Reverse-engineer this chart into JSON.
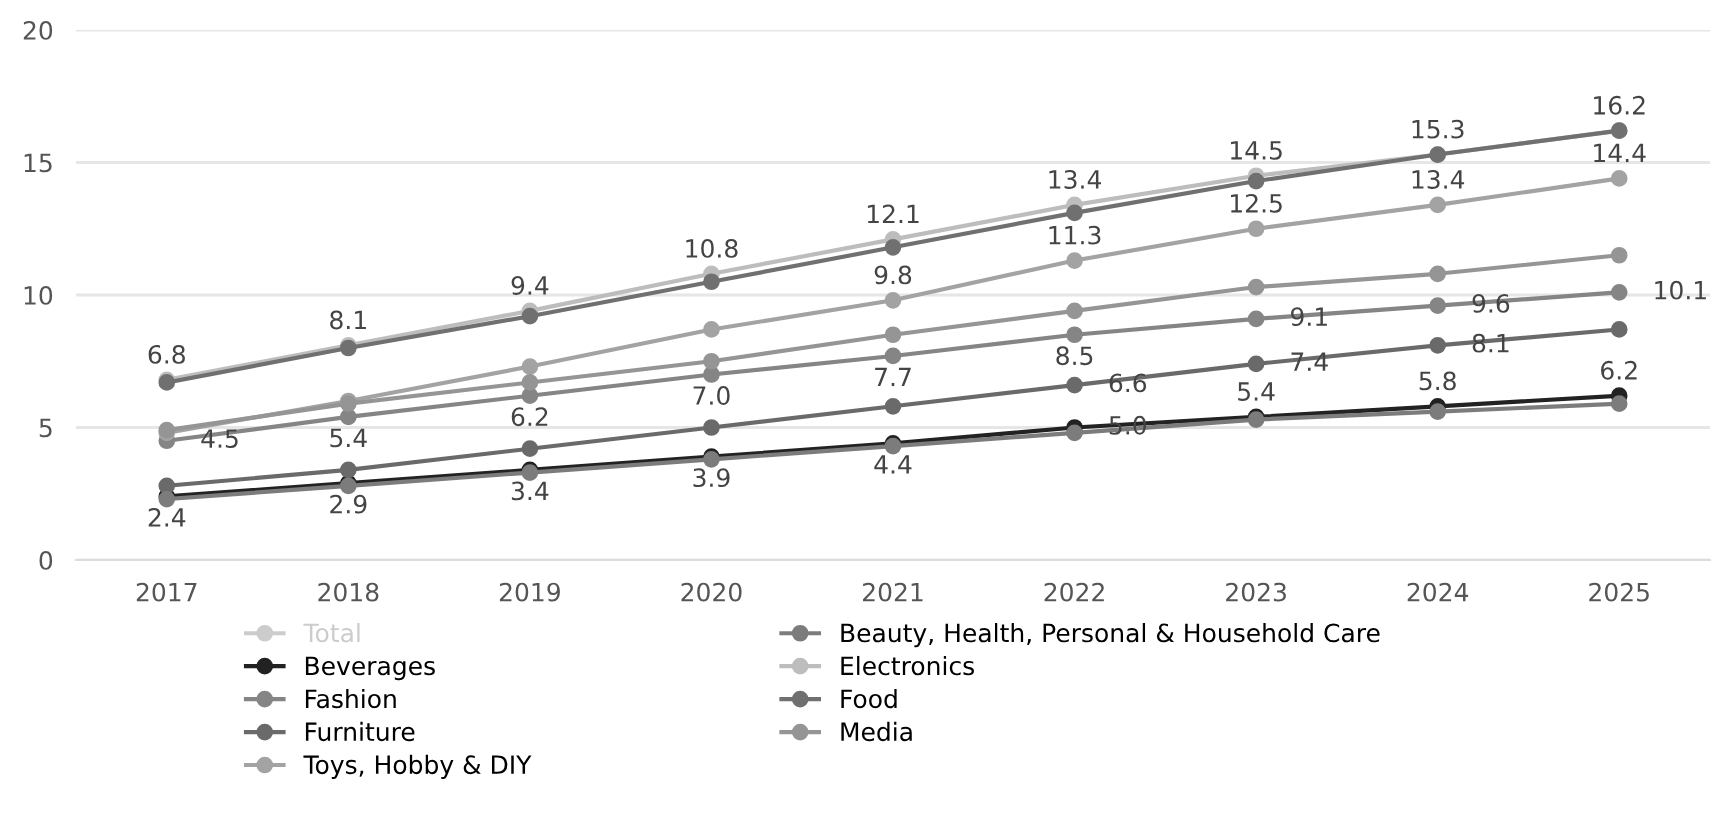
{
  "chart_data": {
    "type": "line",
    "categories": [
      "2017",
      "2018",
      "2019",
      "2020",
      "2021",
      "2022",
      "2023",
      "2024",
      "2025"
    ],
    "ylim": [
      0,
      20
    ],
    "yticks": [
      0,
      5,
      10,
      15,
      20
    ],
    "grid": "y",
    "marker": "circle",
    "line_style": "solid",
    "legend": "bottom left",
    "series": [
      {
        "name": "Total",
        "color": "#cccccc",
        "values": [
          null,
          null,
          null,
          null,
          null,
          null,
          null,
          null,
          null
        ]
      },
      {
        "name": "Beverages",
        "color": "#222222",
        "values": [
          2.4,
          2.9,
          3.4,
          3.9,
          4.4,
          5.0,
          5.4,
          5.8,
          6.2
        ],
        "value_labels": [
          "2.4",
          "2.9",
          "3.4",
          "3.9",
          "4.4",
          "5.0",
          "5.4",
          "5.8",
          "6.2"
        ]
      },
      {
        "name": "Fashion",
        "color": "#858585",
        "values": [
          4.5,
          5.4,
          6.2,
          7.0,
          7.7,
          8.5,
          9.1,
          9.6,
          10.1
        ],
        "value_labels": [
          "4.5",
          "5.4",
          "6.2",
          "7.0",
          "7.7",
          "8.5",
          "9.1",
          "9.6",
          "10.1"
        ]
      },
      {
        "name": "Furniture",
        "color": "#6a6a6a",
        "values": [
          2.8,
          3.4,
          4.2,
          5.0,
          5.8,
          6.6,
          7.4,
          8.1,
          8.7
        ],
        "value_labels": [
          null,
          null,
          null,
          null,
          null,
          "6.6",
          "7.4",
          "8.1",
          null
        ]
      },
      {
        "name": "Toys, Hobby & DIY",
        "color": "#a3a3a3",
        "values": [
          4.8,
          6.0,
          7.3,
          8.7,
          9.8,
          11.3,
          12.5,
          13.4,
          14.4
        ],
        "value_labels": [
          null,
          null,
          null,
          null,
          "9.8",
          "11.3",
          "12.5",
          "13.4",
          "14.4"
        ]
      },
      {
        "name": "Beauty, Health, Personal & Household Care",
        "color": "#7c7c7c",
        "values": [
          2.3,
          2.8,
          3.3,
          3.8,
          4.3,
          4.8,
          5.3,
          5.6,
          5.9
        ]
      },
      {
        "name": "Electronics",
        "color": "#bdbdbd",
        "values": [
          6.8,
          8.1,
          9.4,
          10.8,
          12.1,
          13.4,
          14.5,
          15.3,
          16.2
        ],
        "value_labels": [
          "6.8",
          "8.1",
          "9.4",
          "10.8",
          "12.1",
          "13.4",
          "14.5",
          "15.3",
          "16.2"
        ]
      },
      {
        "name": "Food",
        "color": "#707070",
        "values": [
          6.7,
          8.0,
          9.2,
          10.5,
          11.8,
          13.1,
          14.3,
          15.3,
          16.2
        ]
      },
      {
        "name": "Media",
        "color": "#959595",
        "values": [
          4.9,
          5.9,
          6.7,
          7.5,
          8.5,
          9.4,
          10.3,
          10.8,
          11.5
        ]
      }
    ]
  }
}
